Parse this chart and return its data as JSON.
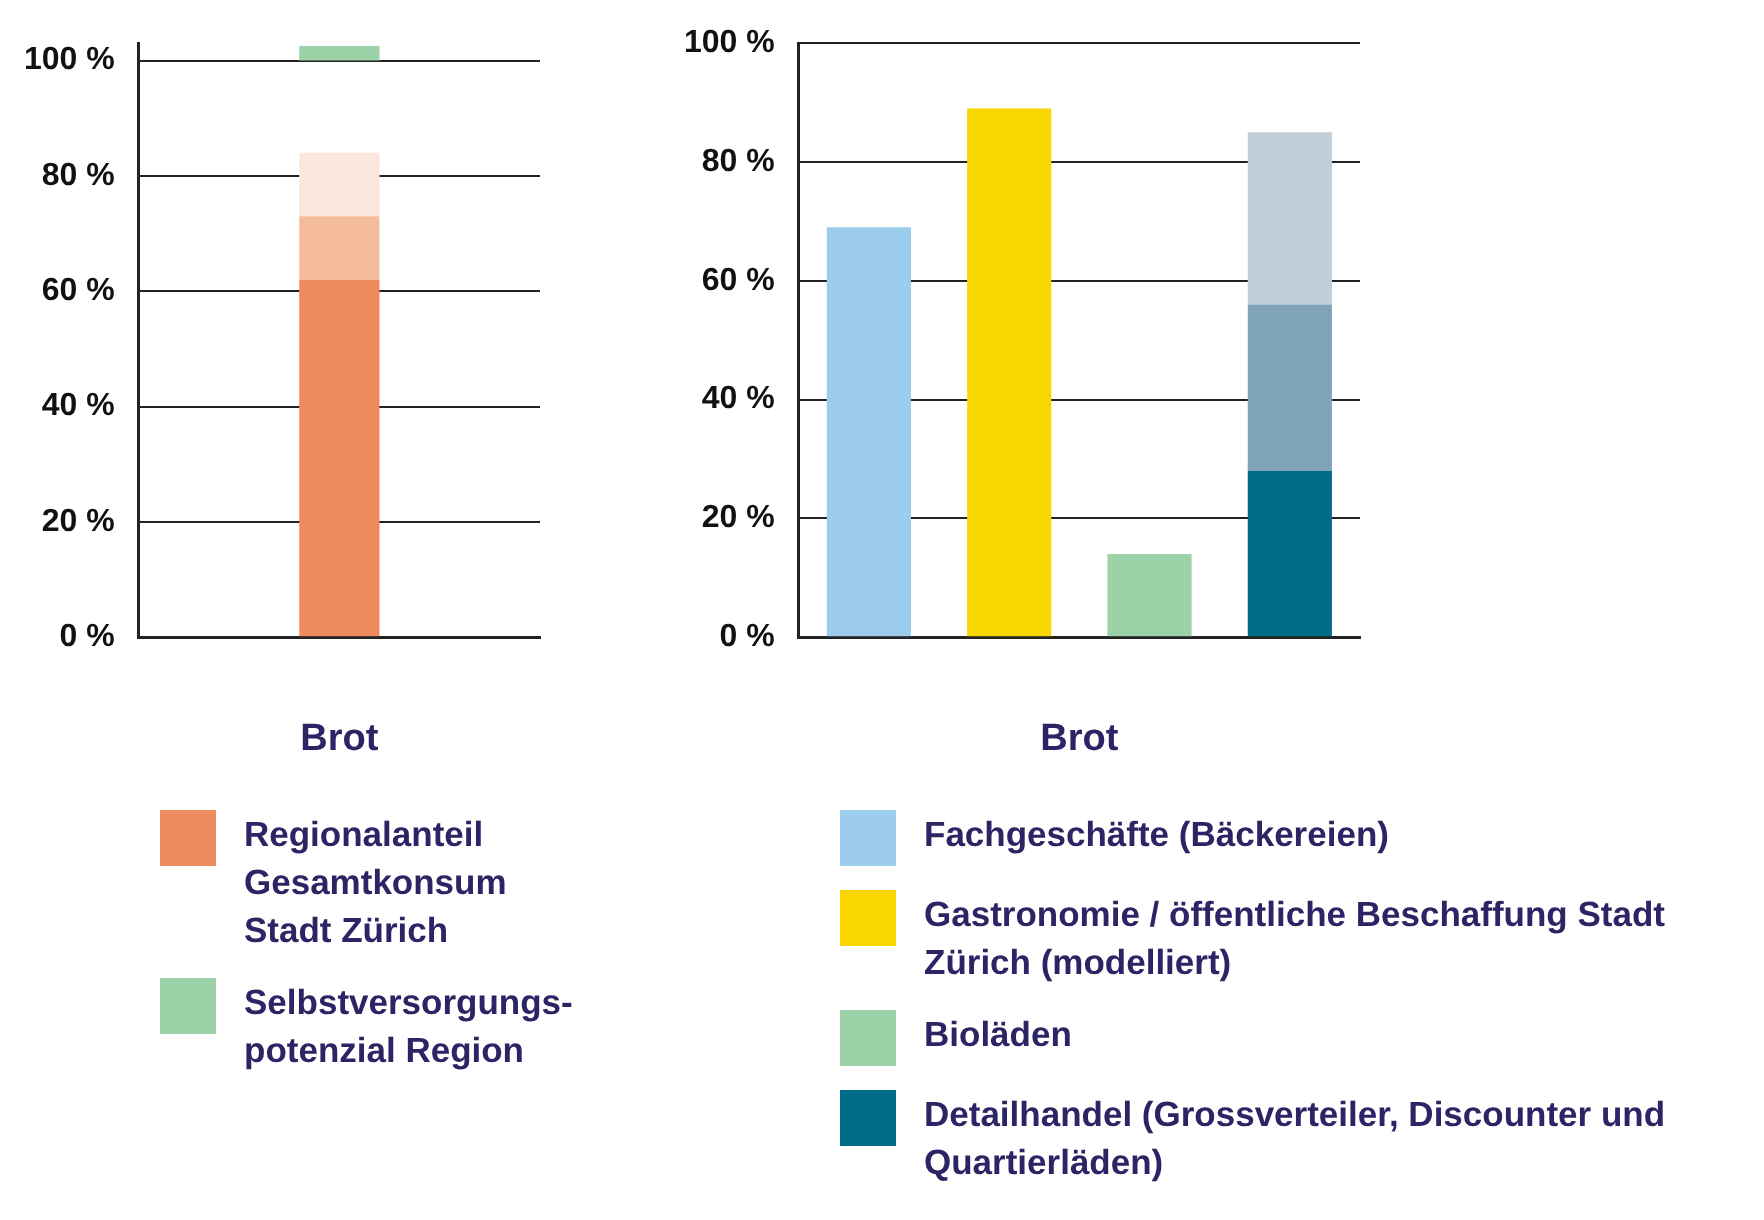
{
  "chart_data": [
    {
      "type": "bar",
      "xlabel": "Brot",
      "categories": [
        null
      ],
      "ylim": [
        0,
        103
      ],
      "yticks": [
        {
          "value": 0,
          "label": "0 %"
        },
        {
          "value": 20,
          "label": "20 %"
        },
        {
          "value": 40,
          "label": "40 %"
        },
        {
          "value": 60,
          "label": "60 %"
        },
        {
          "value": 80,
          "label": "80 %"
        },
        {
          "value": 100,
          "label": "100 %"
        }
      ],
      "grid": "y",
      "legend": "bottom",
      "series": [
        {
          "name": "Regionalanteil Gesamtkonsum Stadt Zürich",
          "color": "#ef8c5f",
          "values": [
            62
          ],
          "base": [
            0
          ]
        },
        {
          "color": "#f5bc9c",
          "values": [
            11
          ],
          "base": [
            62
          ]
        },
        {
          "color": "#fbe6dc",
          "values": [
            11
          ],
          "base": [
            73
          ]
        },
        {
          "name": "Selbstversorgungs-potenzial Region",
          "color": "#9dd1a8",
          "values": [
            2.5
          ],
          "base": [
            100
          ]
        }
      ]
    },
    {
      "type": "bar",
      "stacked": true,
      "xlabel": "Brot",
      "categories": [
        null,
        null,
        null,
        null
      ],
      "ylim": [
        0,
        100
      ],
      "yticks": [
        {
          "value": 0,
          "label": "0 %"
        },
        {
          "value": 20,
          "label": "20 %"
        },
        {
          "value": 40,
          "label": "40 %"
        },
        {
          "value": 60,
          "label": "60 %"
        },
        {
          "value": 80,
          "label": "80 %"
        },
        {
          "value": 100,
          "label": "100 %"
        }
      ],
      "grid": "y",
      "legend": "bottom",
      "series": [
        {
          "name": "Fachgeschäfte (Bäckereien)",
          "color": "#9dcdec",
          "values": [
            69,
            null,
            null,
            null
          ]
        },
        {
          "name": "Gastronomie / öffentliche Beschaffung Stadt Zürich (modelliert)",
          "color": "#f9d600",
          "values": [
            null,
            89,
            null,
            null
          ]
        },
        {
          "name": "Bioläden",
          "color": "#9dd1a8",
          "values": [
            null,
            null,
            14,
            null
          ]
        },
        {
          "name": "Detailhandel (Grossverteiler, Discounter und Quartierläden)",
          "color": "#006d88",
          "values": [
            null,
            null,
            null,
            28
          ]
        },
        {
          "color": "#7fa3b8",
          "values": [
            null,
            null,
            null,
            28
          ]
        },
        {
          "color": "#c0ceda",
          "values": [
            null,
            null,
            null,
            29
          ]
        }
      ]
    }
  ]
}
